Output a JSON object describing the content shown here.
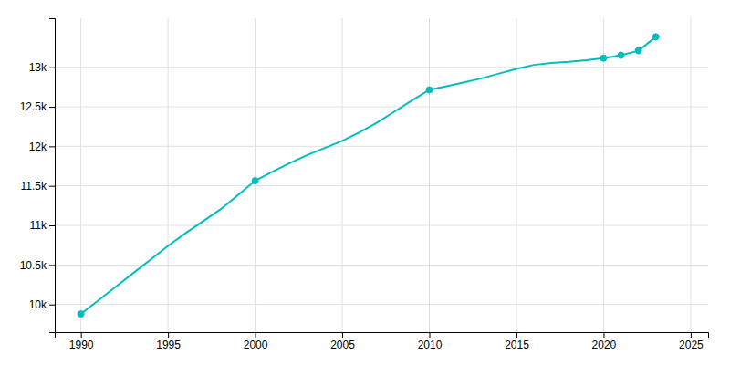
{
  "chart_data": {
    "type": "line",
    "x": [
      1990,
      1991,
      1992,
      1993,
      1994,
      1995,
      1996,
      1997,
      1998,
      1999,
      2000,
      2001,
      2002,
      2003,
      2004,
      2005,
      2006,
      2007,
      2008,
      2009,
      2010,
      2011,
      2012,
      2013,
      2014,
      2015,
      2016,
      2017,
      2018,
      2019,
      2020,
      2021,
      2022,
      2023
    ],
    "series": [
      {
        "values": [
          9880,
          10052,
          10224,
          10396,
          10568,
          10740,
          10900,
          11050,
          11200,
          11380,
          11565,
          11680,
          11790,
          11890,
          11980,
          12070,
          12180,
          12300,
          12440,
          12580,
          12714,
          12760,
          12810,
          12860,
          12920,
          12980,
          13030,
          13055,
          13070,
          13090,
          13116,
          13152,
          13209,
          13385
        ],
        "color": "#00bebe",
        "line_style": "solid",
        "marker": "none"
      },
      {
        "values": [
          9880,
          null,
          null,
          null,
          null,
          null,
          null,
          null,
          null,
          null,
          11565,
          null,
          null,
          null,
          null,
          null,
          null,
          null,
          null,
          null,
          12714,
          null,
          null,
          null,
          null,
          null,
          null,
          null,
          null,
          null,
          13116,
          13152,
          13209,
          13385
        ],
        "color": "#00bebe",
        "line_style": "none",
        "marker": "circle"
      }
    ],
    "xlim": [
      1988.5,
      2026
    ],
    "ylim": [
      9650,
      13620
    ],
    "xticks": [
      1990,
      1995,
      2000,
      2005,
      2010,
      2015,
      2020,
      2025
    ],
    "yticks": [
      {
        "value": 10000,
        "label": "10k"
      },
      {
        "value": 10500,
        "label": "10.5k"
      },
      {
        "value": 11000,
        "label": "11k"
      },
      {
        "value": 11500,
        "label": "11.5k"
      },
      {
        "value": 12000,
        "label": "12k"
      },
      {
        "value": 12500,
        "label": "12.5k"
      },
      {
        "value": 13000,
        "label": "13k"
      }
    ],
    "grid": true
  }
}
